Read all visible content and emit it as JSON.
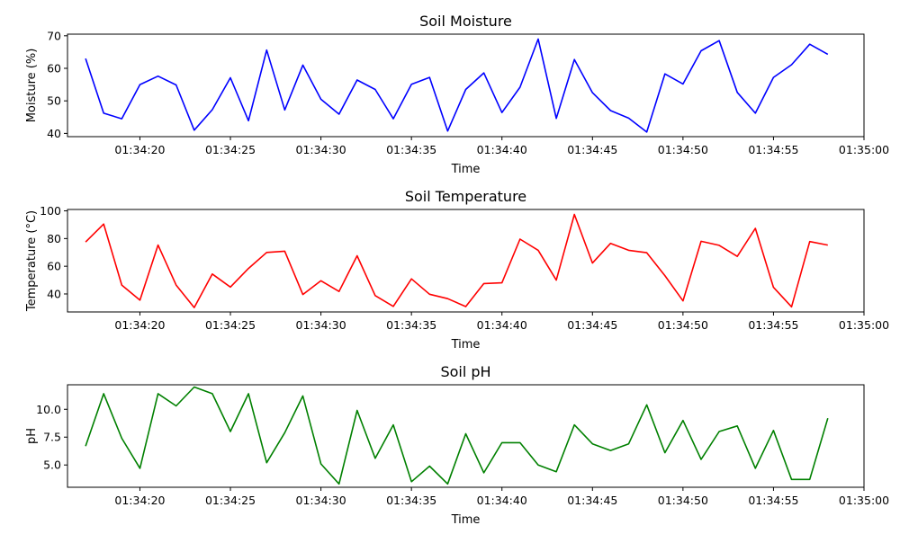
{
  "chart_data": [
    {
      "type": "line",
      "title": "Soil Moisture",
      "xlabel": "Time",
      "ylabel": "Moisture (%)",
      "color": "#0000ff",
      "xlim": [
        "01:34:16",
        "01:35:00"
      ],
      "ylim": [
        39,
        70.5
      ],
      "x_ticks": [
        "01:34:20",
        "01:34:25",
        "01:34:30",
        "01:34:35",
        "01:34:40",
        "01:34:45",
        "01:34:50",
        "01:34:55",
        "01:35:00"
      ],
      "y_ticks": [
        "40",
        "50",
        "60",
        "70"
      ],
      "x": [
        "01:34:17",
        "01:34:18",
        "01:34:19",
        "01:34:20",
        "01:34:21",
        "01:34:22",
        "01:34:23",
        "01:34:24",
        "01:34:25",
        "01:34:26",
        "01:34:27",
        "01:34:28",
        "01:34:29",
        "01:34:30",
        "01:34:31",
        "01:34:32",
        "01:34:33",
        "01:34:34",
        "01:34:35",
        "01:34:36",
        "01:34:37",
        "01:34:38",
        "01:34:39",
        "01:34:40",
        "01:34:41",
        "01:34:42",
        "01:34:43",
        "01:34:44",
        "01:34:45",
        "01:34:46",
        "01:34:47",
        "01:34:48",
        "01:34:49",
        "01:34:50",
        "01:34:51",
        "01:34:52",
        "01:34:53",
        "01:34:54",
        "01:34:55",
        "01:34:56",
        "01:34:57",
        "01:34:58"
      ],
      "values": [
        63.0,
        46.2,
        44.5,
        55.0,
        57.6,
        54.9,
        41.0,
        47.3,
        57.1,
        43.9,
        65.6,
        47.2,
        61.0,
        50.5,
        45.9,
        56.4,
        53.5,
        44.5,
        55.1,
        57.2,
        40.7,
        53.5,
        58.6,
        46.4,
        54.2,
        69.0,
        44.6,
        62.7,
        52.5,
        47.0,
        44.7,
        40.4,
        58.3,
        55.2,
        65.4,
        68.5,
        52.6,
        46.2,
        57.2,
        61.1,
        67.4,
        64.3
      ]
    },
    {
      "type": "line",
      "title": "Soil Temperature",
      "xlabel": "Time",
      "ylabel": "Temperature (°C)",
      "color": "#ff0000",
      "xlim": [
        "01:34:16",
        "01:35:00"
      ],
      "ylim": [
        27,
        101
      ],
      "x_ticks": [
        "01:34:20",
        "01:34:25",
        "01:34:30",
        "01:34:35",
        "01:34:40",
        "01:34:45",
        "01:34:50",
        "01:34:55",
        "01:35:00"
      ],
      "y_ticks": [
        "40",
        "60",
        "80",
        "100"
      ],
      "x": [
        "01:34:17",
        "01:34:18",
        "01:34:19",
        "01:34:20",
        "01:34:21",
        "01:34:22",
        "01:34:23",
        "01:34:24",
        "01:34:25",
        "01:34:26",
        "01:34:27",
        "01:34:28",
        "01:34:29",
        "01:34:30",
        "01:34:31",
        "01:34:32",
        "01:34:33",
        "01:34:34",
        "01:34:35",
        "01:34:36",
        "01:34:37",
        "01:34:38",
        "01:34:39",
        "01:34:40",
        "01:34:41",
        "01:34:42",
        "01:34:43",
        "01:34:44",
        "01:34:45",
        "01:34:46",
        "01:34:47",
        "01:34:48",
        "01:34:49",
        "01:34:50",
        "01:34:51",
        "01:34:52",
        "01:34:53",
        "01:34:54",
        "01:34:55",
        "01:34:56",
        "01:34:57",
        "01:34:58"
      ],
      "values": [
        77.5,
        90.5,
        46.4,
        35.5,
        75.3,
        46.4,
        30.2,
        54.4,
        45.0,
        58.4,
        70.0,
        70.9,
        39.6,
        49.5,
        41.8,
        67.6,
        38.8,
        31.0,
        50.9,
        39.8,
        36.6,
        30.9,
        47.5,
        48.0,
        79.6,
        71.5,
        50.0,
        97.4,
        62.3,
        76.5,
        71.5,
        69.8,
        53.2,
        35.0,
        78.0,
        75.1,
        67.1,
        87.4,
        44.8,
        30.7,
        77.8,
        75.3
      ]
    },
    {
      "type": "line",
      "title": "Soil pH",
      "xlabel": "Time",
      "ylabel": "pH",
      "color": "#008000",
      "xlim": [
        "01:34:16",
        "01:35:00"
      ],
      "ylim": [
        3.0,
        12.2
      ],
      "x_ticks": [
        "01:34:20",
        "01:34:25",
        "01:34:30",
        "01:34:35",
        "01:34:40",
        "01:34:45",
        "01:34:50",
        "01:34:55",
        "01:35:00"
      ],
      "y_ticks": [
        "5.0",
        "7.5",
        "10.0"
      ],
      "x": [
        "01:34:17",
        "01:34:18",
        "01:34:19",
        "01:34:20",
        "01:34:21",
        "01:34:22",
        "01:34:23",
        "01:34:24",
        "01:34:25",
        "01:34:26",
        "01:34:27",
        "01:34:28",
        "01:34:29",
        "01:34:30",
        "01:34:31",
        "01:34:32",
        "01:34:33",
        "01:34:34",
        "01:34:35",
        "01:34:36",
        "01:34:37",
        "01:34:38",
        "01:34:39",
        "01:34:40",
        "01:34:41",
        "01:34:42",
        "01:34:43",
        "01:34:44",
        "01:34:45",
        "01:34:46",
        "01:34:47",
        "01:34:48",
        "01:34:49",
        "01:34:50",
        "01:34:51",
        "01:34:52",
        "01:34:53",
        "01:34:54",
        "01:34:55",
        "01:34:56",
        "01:34:57",
        "01:34:58"
      ],
      "values": [
        6.7,
        11.4,
        7.4,
        4.7,
        11.4,
        10.3,
        12.0,
        11.4,
        8.0,
        11.4,
        5.2,
        7.9,
        11.2,
        5.1,
        3.3,
        9.9,
        5.6,
        8.6,
        3.5,
        4.9,
        3.3,
        7.8,
        4.3,
        7.0,
        7.0,
        5.0,
        4.4,
        8.6,
        6.9,
        6.3,
        6.9,
        10.4,
        6.1,
        9.0,
        5.5,
        8.0,
        8.5,
        4.7,
        8.1,
        3.7,
        3.7,
        9.2
      ]
    }
  ]
}
